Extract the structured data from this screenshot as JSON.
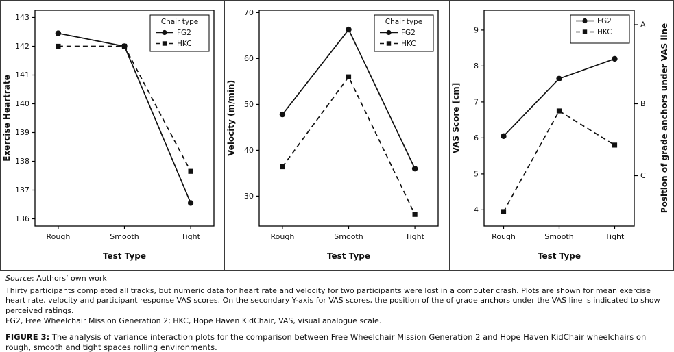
{
  "figure": {
    "line_color": "#111111",
    "panel_border_color": "#3a3a3a",
    "background": "#ffffff"
  },
  "chart_data": [
    {
      "type": "line",
      "categories": [
        "Rough",
        "Smooth",
        "Tight"
      ],
      "series": [
        {
          "name": "FG2",
          "marker": "circle",
          "style": "solid",
          "values": [
            142.45,
            142.0,
            136.55
          ]
        },
        {
          "name": "HKC",
          "marker": "square",
          "style": "dashed",
          "values": [
            142.0,
            142.0,
            137.65
          ]
        }
      ],
      "xlabel": "Test Type",
      "ylabel": "Exercise Heartrate",
      "ylim": [
        135.75,
        143.25
      ],
      "yticks": [
        136,
        137,
        138,
        139,
        140,
        141,
        142,
        143
      ],
      "legend": {
        "title": "Chair type",
        "position": "top-right"
      },
      "grid": false
    },
    {
      "type": "line",
      "categories": [
        "Rough",
        "Smooth",
        "Tight"
      ],
      "series": [
        {
          "name": "FG2",
          "marker": "circle",
          "style": "solid",
          "values": [
            47.8,
            66.3,
            36.0
          ]
        },
        {
          "name": "HKC",
          "marker": "square",
          "style": "dashed",
          "values": [
            36.4,
            56.0,
            26.0
          ]
        }
      ],
      "xlabel": "Test Type",
      "ylabel": "Velocity (m/min)",
      "ylim": [
        23.5,
        70.5
      ],
      "yticks": [
        30,
        40,
        50,
        60,
        70
      ],
      "legend": {
        "title": "Chair type",
        "position": "top-right"
      },
      "grid": false
    },
    {
      "type": "line",
      "categories": [
        "Rough",
        "Smooth",
        "Tight"
      ],
      "series": [
        {
          "name": "FG2",
          "marker": "circle",
          "style": "solid",
          "values": [
            6.05,
            7.65,
            8.2
          ]
        },
        {
          "name": "HKC",
          "marker": "square",
          "style": "dashed",
          "values": [
            3.95,
            6.75,
            5.8
          ]
        }
      ],
      "xlabel": "Test Type",
      "ylabel": "VAS Score [cm]",
      "ylim": [
        3.55,
        9.55
      ],
      "yticks": [
        4,
        5,
        6,
        7,
        8,
        9
      ],
      "legend": {
        "title": "",
        "position": "top-right"
      },
      "right_axis": {
        "label": "Position of grade anchors under VAS line",
        "anchors": [
          {
            "label": "A",
            "value": 9.15
          },
          {
            "label": "B",
            "value": 6.95
          },
          {
            "label": "C",
            "value": 4.95
          }
        ]
      },
      "grid": false
    }
  ],
  "caption": {
    "source_label": "Source",
    "source_text": ": Authors’ own work",
    "note": "Thirty participants completed all tracks, but numeric data for heart rate and velocity for two participants were lost in a computer crash. Plots are shown for mean exercise heart rate, velocity and participant response VAS scores. On the secondary Y-axis for VAS scores, the position of the of grade anchors under the VAS line is indicated to show perceived ratings.",
    "abbreviations": "FG2, Free Wheelchair Mission Generation 2; HKC, Hope Haven KidChair, VAS, visual analogue scale.",
    "figure_label": "FIGURE 3:",
    "figure_text": " The analysis of variance interaction plots for the comparison between Free Wheelchair Mission Generation 2 and Hope Haven KidChair wheelchairs on rough, smooth and tight spaces rolling environments."
  }
}
